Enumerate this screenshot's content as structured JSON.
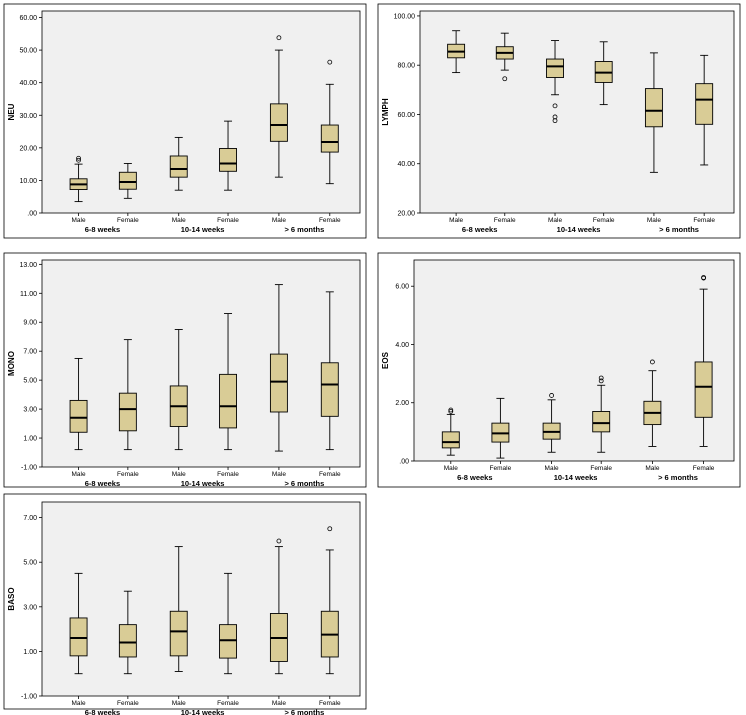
{
  "chart_data": [
    {
      "type": "box",
      "ylabel": "NEU",
      "ylim": [
        0,
        62
      ],
      "yticks": [
        ".00",
        "10.00",
        "20.00",
        "30.00",
        "40.00",
        "50.00",
        "60.00"
      ],
      "ytick_values": [
        0,
        10,
        20,
        30,
        40,
        50,
        60
      ],
      "categories": [
        "Male",
        "Female",
        "Male",
        "Female",
        "Male",
        "Female"
      ],
      "groups": [
        "6-8 weeks",
        "10-14 weeks",
        "> 6 months"
      ],
      "boxes": [
        {
          "min": 3.5,
          "q1": 7.2,
          "median": 8.8,
          "q3": 10.5,
          "max": 15,
          "outliers": [
            16.2,
            16.8
          ]
        },
        {
          "min": 4.5,
          "q1": 7.3,
          "median": 9.5,
          "q3": 12.5,
          "max": 15.2,
          "outliers": []
        },
        {
          "min": 7,
          "q1": 11,
          "median": 13.5,
          "q3": 17.5,
          "max": 23.2,
          "outliers": []
        },
        {
          "min": 7,
          "q1": 12.8,
          "median": 15.2,
          "q3": 19.8,
          "max": 28.2,
          "outliers": []
        },
        {
          "min": 11,
          "q1": 22,
          "median": 27,
          "q3": 33.5,
          "max": 50,
          "outliers": [
            53.8
          ]
        },
        {
          "min": 9,
          "q1": 18.7,
          "median": 21.8,
          "q3": 27,
          "max": 39.5,
          "outliers": [
            46.3
          ]
        }
      ]
    },
    {
      "type": "box",
      "ylabel": "LYMPH",
      "ylim": [
        20,
        102
      ],
      "yticks": [
        "20.00",
        "40.00",
        "60.00",
        "80.00",
        "100.00"
      ],
      "ytick_values": [
        20,
        40,
        60,
        80,
        100
      ],
      "categories": [
        "Male",
        "Female",
        "Male",
        "Female",
        "Male",
        "Female"
      ],
      "groups": [
        "6-8 weeks",
        "10-14 weeks",
        "> 6 months"
      ],
      "boxes": [
        {
          "min": 77,
          "q1": 83,
          "median": 85.5,
          "q3": 88.5,
          "max": 94,
          "outliers": []
        },
        {
          "min": 78,
          "q1": 82.5,
          "median": 85,
          "q3": 87.5,
          "max": 93,
          "outliers": [
            74.5
          ]
        },
        {
          "min": 68,
          "q1": 75,
          "median": 79.5,
          "q3": 82.5,
          "max": 90,
          "outliers": [
            63.5,
            59,
            57.5
          ]
        },
        {
          "min": 64,
          "q1": 73,
          "median": 77,
          "q3": 81.5,
          "max": 89.5,
          "outliers": []
        },
        {
          "min": 36.5,
          "q1": 55,
          "median": 61.5,
          "q3": 70.5,
          "max": 85,
          "outliers": []
        },
        {
          "min": 39.5,
          "q1": 56,
          "median": 66,
          "q3": 72.5,
          "max": 84,
          "outliers": []
        }
      ]
    },
    {
      "type": "box",
      "ylabel": "MONO",
      "ylim": [
        -1,
        13.3
      ],
      "yticks": [
        "-1.00",
        "1.00",
        "3.00",
        "5.00",
        "7.00",
        "9.00",
        "11.00",
        "13.00"
      ],
      "ytick_values": [
        -1,
        1,
        3,
        5,
        7,
        9,
        11,
        13
      ],
      "categories": [
        "Male",
        "Female",
        "Male",
        "Female",
        "Male",
        "Female"
      ],
      "groups": [
        "6-8 weeks",
        "10-14 weeks",
        "> 6 months"
      ],
      "boxes": [
        {
          "min": 0.2,
          "q1": 1.4,
          "median": 2.4,
          "q3": 3.6,
          "max": 6.5,
          "outliers": []
        },
        {
          "min": 0.2,
          "q1": 1.5,
          "median": 3.0,
          "q3": 4.1,
          "max": 7.8,
          "outliers": []
        },
        {
          "min": 0.2,
          "q1": 1.8,
          "median": 3.2,
          "q3": 4.6,
          "max": 8.5,
          "outliers": []
        },
        {
          "min": 0.2,
          "q1": 1.7,
          "median": 3.2,
          "q3": 5.4,
          "max": 9.6,
          "outliers": []
        },
        {
          "min": 0.1,
          "q1": 2.8,
          "median": 4.9,
          "q3": 6.8,
          "max": 11.6,
          "outliers": []
        },
        {
          "min": 0.2,
          "q1": 2.5,
          "median": 4.7,
          "q3": 6.2,
          "max": 11.1,
          "outliers": []
        }
      ]
    },
    {
      "type": "box",
      "ylabel": "EOS",
      "ylim": [
        0,
        6.9
      ],
      "yticks": [
        ".00",
        "2.00",
        "4.00",
        "6.00"
      ],
      "ytick_values": [
        0,
        2,
        4,
        6
      ],
      "categories": [
        "Male",
        "Female",
        "Male",
        "Female",
        "Male",
        "Female"
      ],
      "groups": [
        "6-8 weeks",
        "10-14 weeks",
        "> 6 months"
      ],
      "boxes": [
        {
          "min": 0.2,
          "q1": 0.45,
          "median": 0.65,
          "q3": 1.0,
          "max": 1.6,
          "outliers": [
            1.7,
            1.75
          ]
        },
        {
          "min": 0.1,
          "q1": 0.65,
          "median": 0.95,
          "q3": 1.3,
          "max": 2.15,
          "outliers": []
        },
        {
          "min": 0.3,
          "q1": 0.75,
          "median": 1.0,
          "q3": 1.3,
          "max": 2.1,
          "outliers": [
            2.25
          ]
        },
        {
          "min": 0.3,
          "q1": 1.0,
          "median": 1.3,
          "q3": 1.7,
          "max": 2.6,
          "outliers": [
            2.75,
            2.85
          ]
        },
        {
          "min": 0.5,
          "q1": 1.25,
          "median": 1.65,
          "q3": 2.05,
          "max": 3.1,
          "outliers": [
            3.4
          ]
        },
        {
          "min": 0.5,
          "q1": 1.5,
          "median": 2.55,
          "q3": 3.4,
          "max": 5.9,
          "outliers": [
            6.3,
            6.28
          ]
        }
      ]
    },
    {
      "type": "box",
      "ylabel": "BASO",
      "ylim": [
        -1,
        7.7
      ],
      "yticks": [
        "-1.00",
        "1.00",
        "3.00",
        "5.00",
        "7.00"
      ],
      "ytick_values": [
        -1,
        1,
        3,
        5,
        7
      ],
      "categories": [
        "Male",
        "Female",
        "Male",
        "Female",
        "Male",
        "Female"
      ],
      "groups": [
        "6-8 weeks",
        "10-14 weeks",
        "> 6 months"
      ],
      "boxes": [
        {
          "min": 0,
          "q1": 0.8,
          "median": 1.6,
          "q3": 2.5,
          "max": 4.5,
          "outliers": []
        },
        {
          "min": 0,
          "q1": 0.75,
          "median": 1.4,
          "q3": 2.2,
          "max": 3.7,
          "outliers": []
        },
        {
          "min": 0.1,
          "q1": 0.8,
          "median": 1.9,
          "q3": 2.8,
          "max": 5.7,
          "outliers": []
        },
        {
          "min": 0,
          "q1": 0.7,
          "median": 1.5,
          "q3": 2.2,
          "max": 4.5,
          "outliers": []
        },
        {
          "min": 0,
          "q1": 0.55,
          "median": 1.6,
          "q3": 2.7,
          "max": 5.7,
          "outliers": [
            5.95
          ]
        },
        {
          "min": 0,
          "q1": 0.75,
          "median": 1.75,
          "q3": 2.8,
          "max": 5.55,
          "outliers": [
            6.5
          ]
        }
      ]
    }
  ],
  "colors": {
    "box_fill": "#d9cc96",
    "plot_background": "#f0f0f0",
    "stroke": "#000000"
  }
}
